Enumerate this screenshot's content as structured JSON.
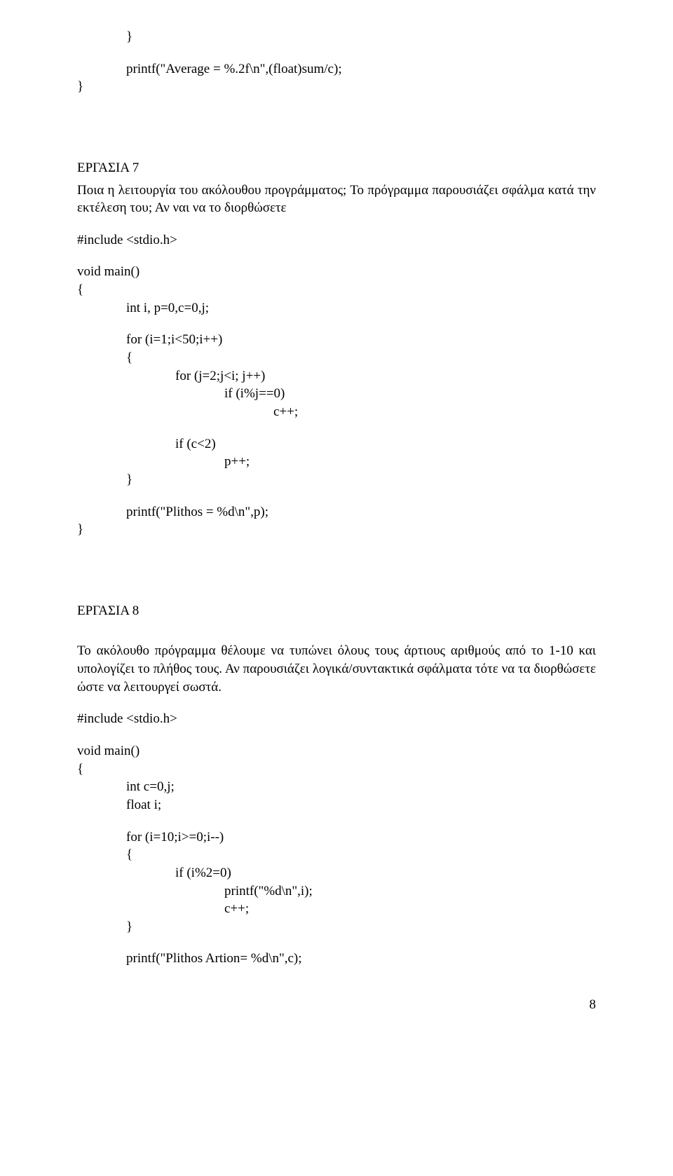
{
  "block1": {
    "l1": "}",
    "l2": "printf(\"Average = %.2f\\n\",(float)sum/c);",
    "l3": "}"
  },
  "ex7": {
    "title": "ΕΡΓΑΣΙΑ 7",
    "para": "Ποια η λειτουργία του ακόλουθου προγράμματος; Το πρόγραμμα παρουσιάζει σφάλμα κατά την εκτέλεση του; Αν ναι να το διορθώσετε",
    "c1": "#include <stdio.h>",
    "c2": "void main()",
    "c3": "{",
    "c4": "int i, p=0,c=0,j;",
    "c5": "for (i=1;i<50;i++)",
    "c6": "{",
    "c7": "for (j=2;j<i; j++)",
    "c8": "if (i%j==0)",
    "c9": "c++;",
    "c10": "if (c<2)",
    "c11": "p++;",
    "c12": "}",
    "c13": "printf(\"Plithos = %d\\n\",p);",
    "c14": "}"
  },
  "ex8": {
    "title": "ΕΡΓΑΣΙΑ 8",
    "para": "Το ακόλουθο πρόγραμμα θέλουμε να τυπώνει όλους τους άρτιους αριθμούς από το 1-10 και υπολογίζει το πλήθος τους. Αν παρουσιάζει λογικά/συντακτικά σφάλματα τότε να τα διορθώσετε ώστε να λειτουργεί σωστά.",
    "c1": "#include <stdio.h>",
    "c2": "void main()",
    "c3": "{",
    "c4": "int c=0,j;",
    "c5": "float i;",
    "c6": "for (i=10;i>=0;i--)",
    "c7": "{",
    "c8": "if (i%2=0)",
    "c9": "printf(\"%d\\n\",i);",
    "c10": "c++;",
    "c11": "}",
    "c12": "printf(\"Plithos Artion= %d\\n\",c);"
  },
  "page_number": "8"
}
